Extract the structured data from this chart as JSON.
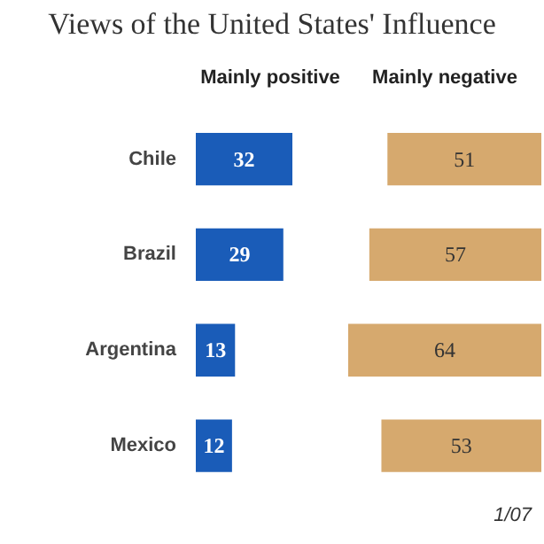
{
  "chart_data": [
    {
      "type": "bar",
      "title": "Views of the United States' Influence",
      "orientation": "horizontal",
      "categories": [
        "Chile",
        "Brazil",
        "Argentina",
        "Mexico"
      ],
      "tick_labels": "y",
      "data_labels": true,
      "series": [
        {
          "name": "Mainly positive",
          "color": "#1a5cb8",
          "values": [
            32,
            29,
            13,
            12
          ]
        }
      ]
    },
    {
      "type": "bar",
      "orientation": "horizontal",
      "categories": [
        null,
        null,
        null,
        null
      ],
      "tick_labels": false,
      "data_labels": true,
      "annotations": [
        "1/07"
      ],
      "series": [
        {
          "name": "Mainly negative",
          "color": "#d6a96e",
          "values": [
            51,
            57,
            64,
            53
          ]
        }
      ]
    }
  ]
}
